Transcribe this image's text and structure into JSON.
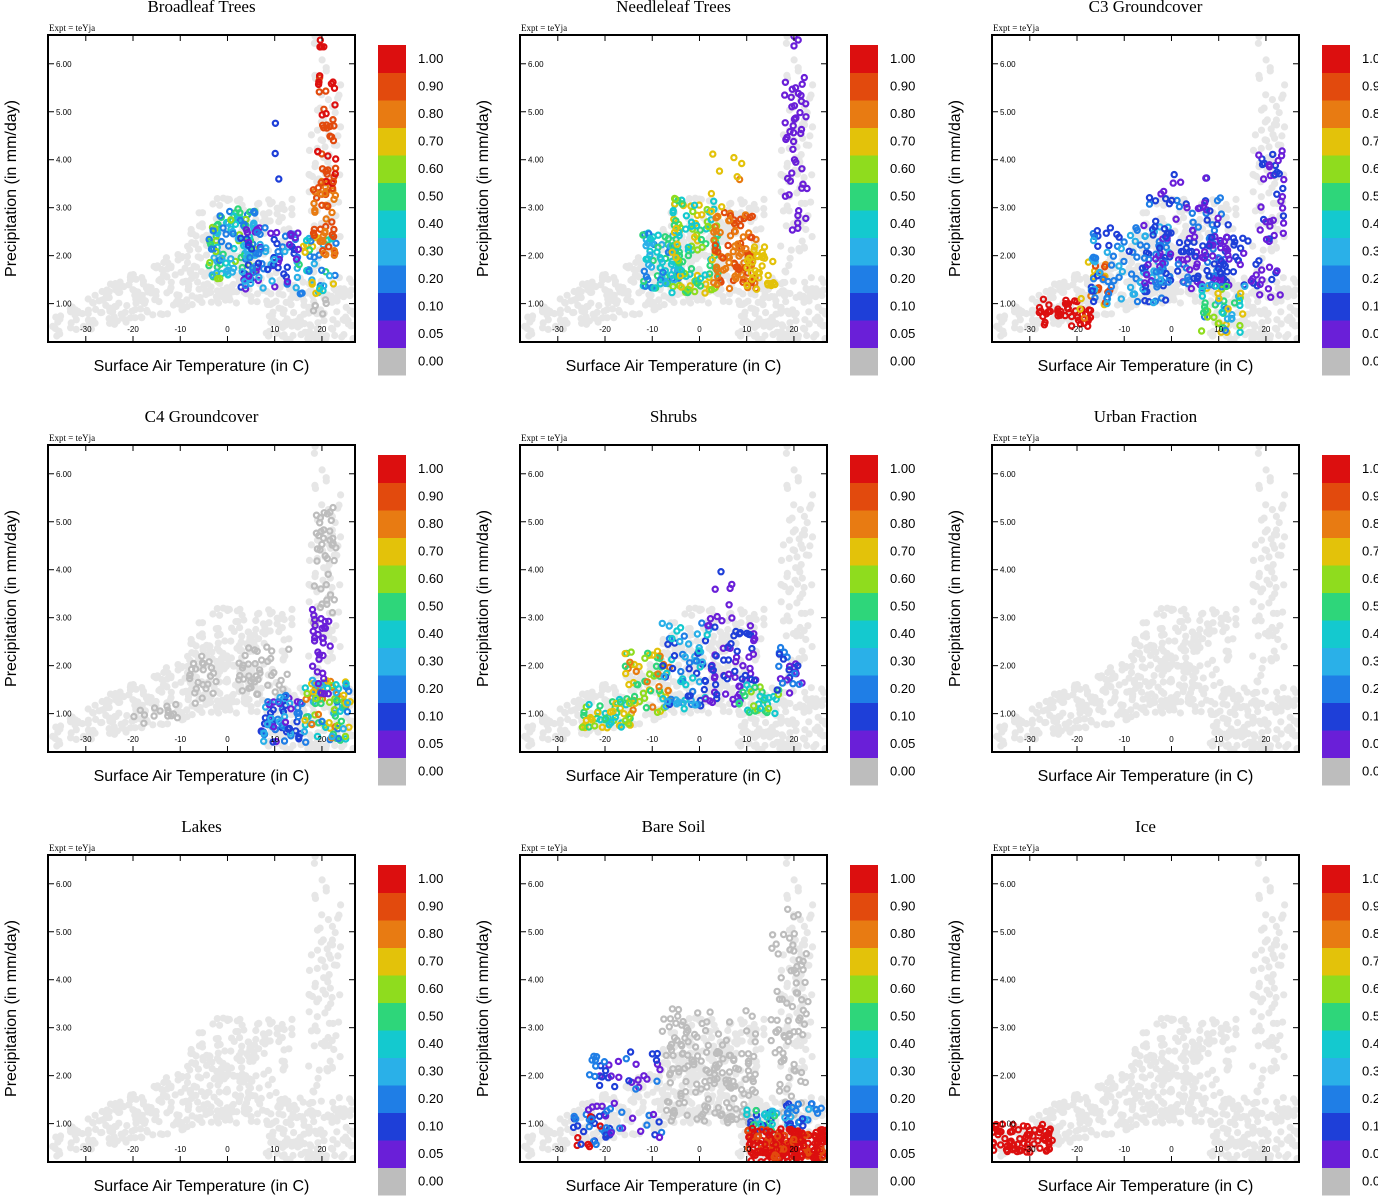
{
  "figure": {
    "experiment_label": "Expt = teYja",
    "xlabel": "Surface Air Temperature (in C)",
    "ylabel": "Precipitation (in mm/day)",
    "x_ticks": [
      "-30",
      "-20",
      "-10",
      "0",
      "10",
      "20"
    ],
    "y_ticks": [
      "1.00",
      "2.00",
      "3.00",
      "4.00",
      "5.00",
      "6.00"
    ],
    "colorbar_labels": [
      "0.00",
      "0.05",
      "0.10",
      "0.20",
      "0.30",
      "0.40",
      "0.50",
      "0.60",
      "0.70",
      "0.80",
      "0.90",
      "1.00"
    ],
    "colorbar_colors": [
      "#bdbdbd",
      "#6a1fd8",
      "#1e3fd8",
      "#1f7ee6",
      "#2ab0e8",
      "#14c9cf",
      "#2ed67a",
      "#8fdc1e",
      "#e3c20a",
      "#e87b12",
      "#e24a0d",
      "#dc0f0f"
    ],
    "background_color": "#e6e6e6"
  },
  "chart_data": [
    {
      "type": "scatter",
      "title": "Broadleaf Trees",
      "xlim": [
        -38,
        27
      ],
      "ylim": [
        0.2,
        6.6
      ],
      "clusters": [
        {
          "x": [
            -4,
            6
          ],
          "y": [
            1.5,
            3.0
          ],
          "levels": [
            4,
            5,
            6,
            7,
            3
          ],
          "n": 110
        },
        {
          "x": [
            2,
            15
          ],
          "y": [
            1.3,
            2.6
          ],
          "levels": [
            1,
            2,
            3,
            4
          ],
          "n": 90
        },
        {
          "x": [
            15,
            23
          ],
          "y": [
            1.2,
            2.4
          ],
          "levels": [
            3,
            4,
            5,
            6,
            8
          ],
          "n": 40
        },
        {
          "x": [
            18,
            23
          ],
          "y": [
            2.0,
            3.6
          ],
          "levels": [
            9,
            10
          ],
          "n": 50
        },
        {
          "x": [
            19,
            23
          ],
          "y": [
            3.4,
            5.8
          ],
          "levels": [
            10,
            11
          ],
          "n": 40
        },
        {
          "x": [
            19.5,
            20.5
          ],
          "y": [
            6.3,
            6.5
          ],
          "levels": [
            11
          ],
          "n": 4
        },
        {
          "x": [
            9,
            11
          ],
          "y": [
            3.3,
            4.8
          ],
          "levels": [
            2
          ],
          "n": 3
        },
        {
          "x": [
            13,
            15
          ],
          "y": [
            1.8,
            2.5
          ],
          "levels": [
            1
          ],
          "n": 6
        },
        {
          "x": [
            18,
            21
          ],
          "y": [
            0.7,
            1.1
          ],
          "levels": [
            0
          ],
          "n": 6
        }
      ]
    },
    {
      "type": "scatter",
      "title": "Needleleaf Trees",
      "xlim": [
        -38,
        27
      ],
      "ylim": [
        0.2,
        6.6
      ],
      "clusters": [
        {
          "x": [
            -12,
            -4
          ],
          "y": [
            1.3,
            2.5
          ],
          "levels": [
            3,
            4,
            5,
            6
          ],
          "n": 80
        },
        {
          "x": [
            -6,
            4
          ],
          "y": [
            1.2,
            3.2
          ],
          "levels": [
            5,
            6,
            7,
            8
          ],
          "n": 120
        },
        {
          "x": [
            3,
            12
          ],
          "y": [
            1.3,
            2.9
          ],
          "levels": [
            9,
            10
          ],
          "n": 90
        },
        {
          "x": [
            10,
            16
          ],
          "y": [
            1.3,
            2.2
          ],
          "levels": [
            8
          ],
          "n": 30
        },
        {
          "x": [
            18,
            23
          ],
          "y": [
            2.5,
            5.8
          ],
          "levels": [
            1
          ],
          "n": 45
        },
        {
          "x": [
            19.5,
            21
          ],
          "y": [
            6.3,
            6.6
          ],
          "levels": [
            1
          ],
          "n": 3
        },
        {
          "x": [
            2,
            9
          ],
          "y": [
            3.0,
            4.2
          ],
          "levels": [
            8,
            9
          ],
          "n": 8
        }
      ]
    },
    {
      "type": "scatter",
      "title": "C3 Groundcover",
      "xlim": [
        -38,
        27
      ],
      "ylim": [
        0.2,
        6.6
      ],
      "clusters": [
        {
          "x": [
            -28,
            -17
          ],
          "y": [
            0.5,
            1.1
          ],
          "levels": [
            11
          ],
          "n": 45
        },
        {
          "x": [
            -20,
            -13
          ],
          "y": [
            0.6,
            1.9
          ],
          "levels": [
            9,
            10,
            8
          ],
          "n": 20
        },
        {
          "x": [
            -17,
            0
          ],
          "y": [
            1.0,
            2.6
          ],
          "levels": [
            2,
            3,
            4
          ],
          "n": 110
        },
        {
          "x": [
            -6,
            12
          ],
          "y": [
            1.4,
            3.3
          ],
          "levels": [
            2,
            1,
            3
          ],
          "n": 110
        },
        {
          "x": [
            3,
            18
          ],
          "y": [
            1.3,
            2.4
          ],
          "levels": [
            1,
            2
          ],
          "n": 70
        },
        {
          "x": [
            6,
            16
          ],
          "y": [
            0.4,
            1.4
          ],
          "levels": [
            3,
            4,
            5,
            6,
            7,
            8
          ],
          "n": 50
        },
        {
          "x": [
            18,
            24
          ],
          "y": [
            1.1,
            4.2
          ],
          "levels": [
            1,
            2
          ],
          "n": 50
        },
        {
          "x": [
            -2,
            8
          ],
          "y": [
            3.3,
            4.0
          ],
          "levels": [
            2,
            1
          ],
          "n": 6
        }
      ]
    },
    {
      "type": "scatter",
      "title": "C4 Groundcover",
      "xlim": [
        -38,
        27
      ],
      "ylim": [
        0.2,
        6.6
      ],
      "clusters": [
        {
          "x": [
            -20,
            -10
          ],
          "y": [
            0.8,
            1.2
          ],
          "levels": [
            0
          ],
          "n": 15
        },
        {
          "x": [
            -8,
            -2
          ],
          "y": [
            1.2,
            2.2
          ],
          "levels": [
            0
          ],
          "n": 25
        },
        {
          "x": [
            2,
            14
          ],
          "y": [
            1.4,
            2.4
          ],
          "levels": [
            0
          ],
          "n": 40
        },
        {
          "x": [
            18,
            23
          ],
          "y": [
            2.8,
            5.3
          ],
          "levels": [
            0
          ],
          "n": 40
        },
        {
          "x": [
            7,
            16
          ],
          "y": [
            0.4,
            1.4
          ],
          "levels": [
            1,
            2,
            3,
            4
          ],
          "n": 70
        },
        {
          "x": [
            16,
            26
          ],
          "y": [
            0.4,
            1.7
          ],
          "levels": [
            3,
            4,
            5,
            6,
            7,
            8,
            9
          ],
          "n": 90
        },
        {
          "x": [
            18,
            22
          ],
          "y": [
            1.4,
            3.2
          ],
          "levels": [
            1
          ],
          "n": 30
        }
      ]
    },
    {
      "type": "scatter",
      "title": "Shrubs",
      "xlim": [
        -38,
        27
      ],
      "ylim": [
        0.2,
        6.6
      ],
      "clusters": [
        {
          "x": [
            -25,
            -14
          ],
          "y": [
            0.7,
            1.3
          ],
          "levels": [
            5,
            6,
            7,
            8
          ],
          "n": 50
        },
        {
          "x": [
            -16,
            -6
          ],
          "y": [
            1.0,
            2.3
          ],
          "levels": [
            7,
            8,
            9,
            6
          ],
          "n": 60
        },
        {
          "x": [
            -8,
            2
          ],
          "y": [
            1.1,
            2.9
          ],
          "levels": [
            4,
            3,
            5,
            2
          ],
          "n": 70
        },
        {
          "x": [
            1,
            12
          ],
          "y": [
            1.2,
            3.0
          ],
          "levels": [
            1,
            2
          ],
          "n": 70
        },
        {
          "x": [
            8,
            17
          ],
          "y": [
            1.0,
            1.6
          ],
          "levels": [
            6,
            7,
            5
          ],
          "n": 30
        },
        {
          "x": [
            16,
            22
          ],
          "y": [
            1.3,
            2.5
          ],
          "levels": [
            2,
            3,
            1
          ],
          "n": 25
        },
        {
          "x": [
            3,
            9
          ],
          "y": [
            3.0,
            4.0
          ],
          "levels": [
            1,
            2
          ],
          "n": 6
        }
      ]
    },
    {
      "type": "scatter",
      "title": "Urban Fraction",
      "xlim": [
        -38,
        27
      ],
      "ylim": [
        0.2,
        6.6
      ],
      "clusters": []
    },
    {
      "type": "scatter",
      "title": "Lakes",
      "xlim": [
        -38,
        27
      ],
      "ylim": [
        0.2,
        6.6
      ],
      "clusters": []
    },
    {
      "type": "scatter",
      "title": "Bare Soil",
      "xlim": [
        -38,
        27
      ],
      "ylim": [
        0.2,
        6.6
      ],
      "clusters": [
        {
          "x": [
            -27,
            -18
          ],
          "y": [
            0.5,
            1.2
          ],
          "levels": [
            11,
            2,
            3
          ],
          "n": 30
        },
        {
          "x": [
            -24,
            -8
          ],
          "y": [
            0.7,
            2.5
          ],
          "levels": [
            1,
            2,
            3
          ],
          "n": 60
        },
        {
          "x": [
            -8,
            12
          ],
          "y": [
            1.0,
            3.4
          ],
          "levels": [
            0
          ],
          "n": 160
        },
        {
          "x": [
            15,
            23
          ],
          "y": [
            1.0,
            5.5
          ],
          "levels": [
            0
          ],
          "n": 80
        },
        {
          "x": [
            10,
            17
          ],
          "y": [
            0.8,
            1.3
          ],
          "levels": [
            4,
            5,
            6,
            2
          ],
          "n": 35
        },
        {
          "x": [
            18,
            26
          ],
          "y": [
            0.9,
            1.5
          ],
          "levels": [
            2,
            3,
            4
          ],
          "n": 30
        },
        {
          "x": [
            10,
            27
          ],
          "y": [
            0.2,
            0.9
          ],
          "levels": [
            10,
            11,
            11,
            11
          ],
          "n": 220
        }
      ]
    },
    {
      "type": "scatter",
      "title": "Ice",
      "xlim": [
        -38,
        27
      ],
      "ylim": [
        0.2,
        6.6
      ],
      "clusters": [
        {
          "x": [
            -38,
            -25
          ],
          "y": [
            0.4,
            1.0
          ],
          "levels": [
            11
          ],
          "n": 70
        }
      ]
    }
  ]
}
